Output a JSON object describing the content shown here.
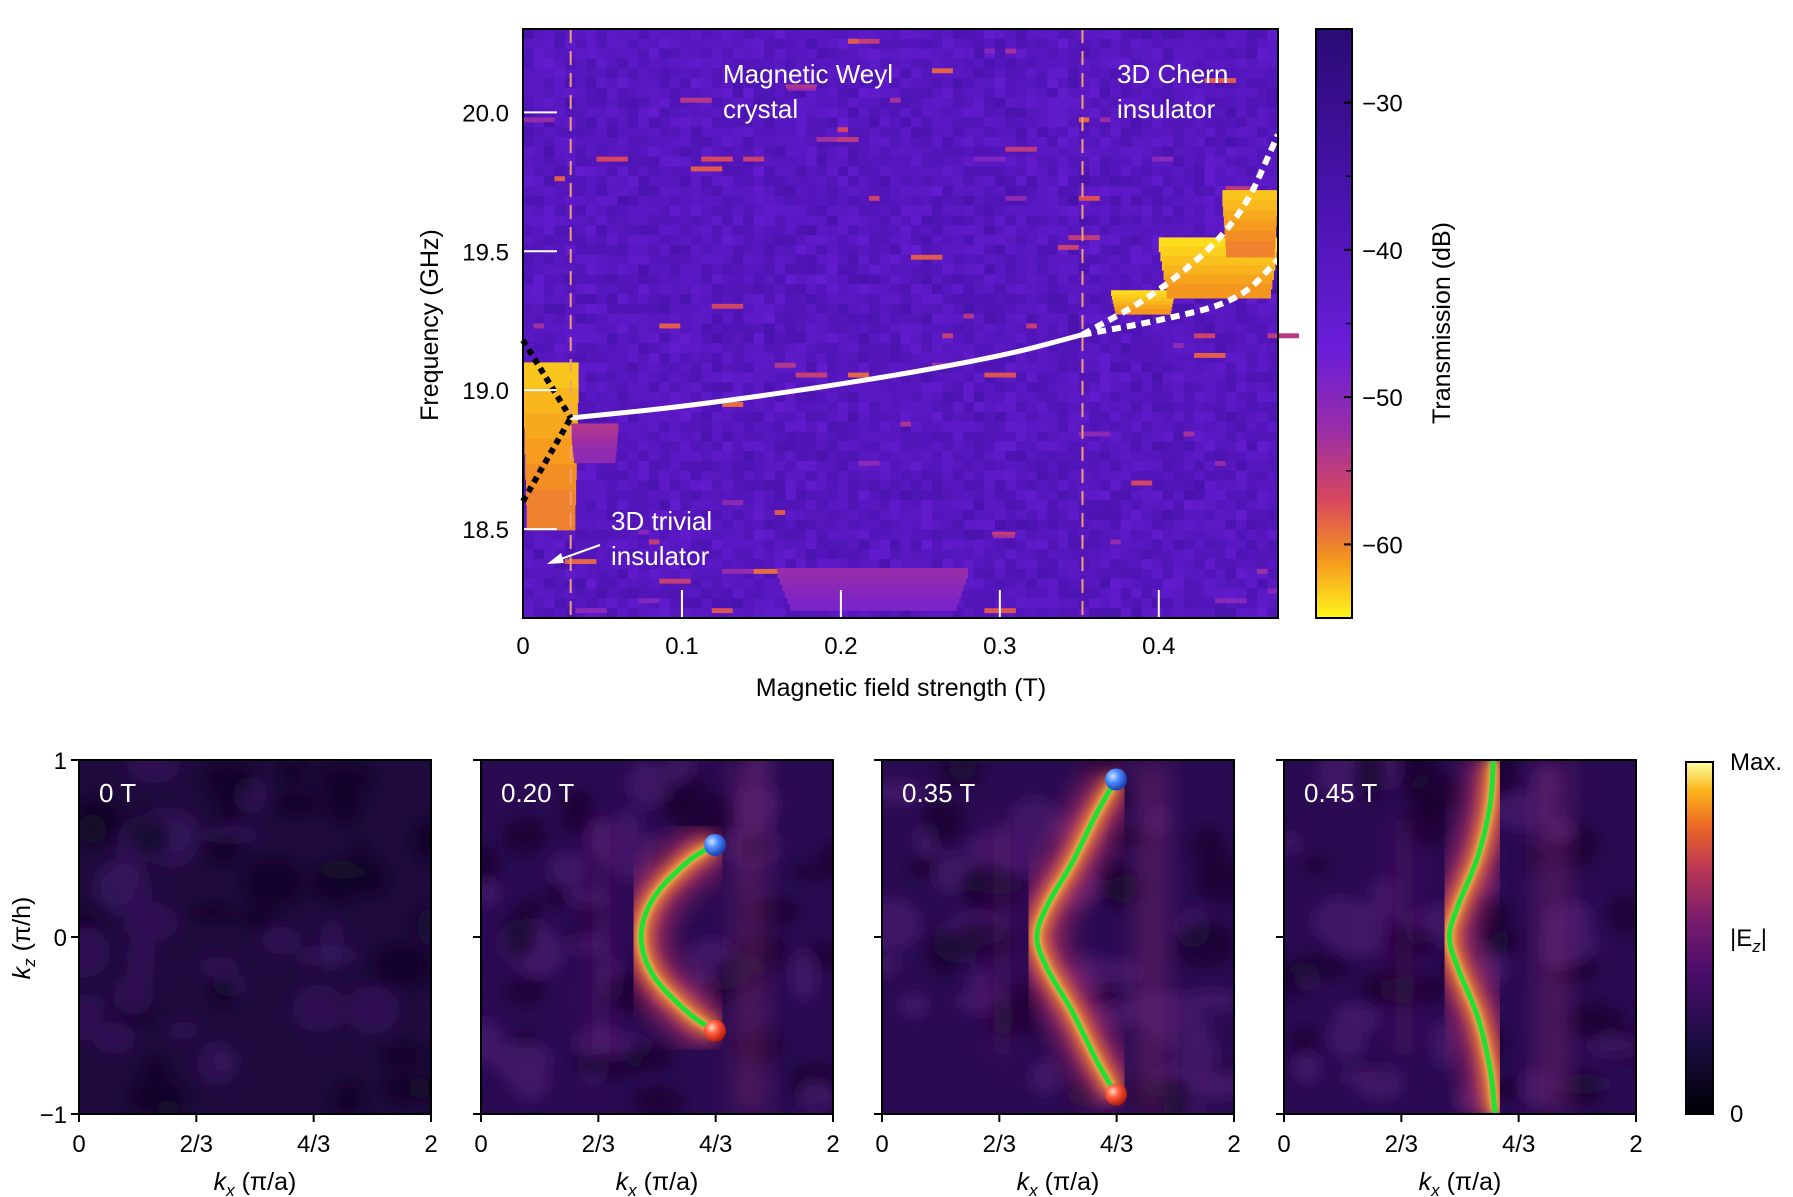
{
  "chart_data": [
    {
      "type": "heatmap",
      "xlabel": "Magnetic field strength (T)",
      "ylabel": "Frequency (GHz)",
      "xlim": [
        0,
        0.475
      ],
      "ylim": [
        18.18,
        20.3
      ],
      "xticks": [
        {
          "v": 0,
          "t": "0"
        },
        {
          "v": 0.1,
          "t": "0.1"
        },
        {
          "v": 0.2,
          "t": "0.2"
        },
        {
          "v": 0.3,
          "t": "0.3"
        },
        {
          "v": 0.4,
          "t": "0.4"
        }
      ],
      "yticks": [
        {
          "v": 18.5,
          "t": "18.5"
        },
        {
          "v": 19.0,
          "t": "19.0"
        },
        {
          "v": 19.5,
          "t": "19.5"
        },
        {
          "v": 20.0,
          "t": "20.0"
        }
      ],
      "phase_boundaries": [
        0.03,
        0.352
      ],
      "colorbar": {
        "label": "Transmission (dB)",
        "range": [
          -25,
          -65
        ],
        "ticks": [
          {
            "v": -30,
            "t": "−30"
          },
          {
            "v": -40,
            "t": "−40"
          },
          {
            "v": -50,
            "t": "−50"
          },
          {
            "v": -60,
            "t": "−60"
          }
        ]
      },
      "annotations": {
        "weyl": [
          "Magnetic Weyl",
          "crystal"
        ],
        "chern": [
          "3D Chern",
          "insulator"
        ],
        "trivial": [
          "3D trivial",
          "insulator"
        ]
      },
      "series": [
        {
          "style": "white-solid",
          "x": [
            0.03,
            0.1,
            0.2,
            0.3,
            0.352
          ],
          "y": [
            18.9,
            18.94,
            19.02,
            19.12,
            19.2
          ]
        },
        {
          "style": "black-dotted",
          "x": [
            0,
            0.03
          ],
          "y": [
            19.18,
            18.9
          ]
        },
        {
          "style": "black-dotted",
          "x": [
            0,
            0.03
          ],
          "y": [
            18.6,
            18.9
          ]
        },
        {
          "style": "white-dotted",
          "x": [
            0.352,
            0.4,
            0.45,
            0.475
          ],
          "y": [
            19.2,
            19.35,
            19.6,
            19.92
          ]
        },
        {
          "style": "white-dotted",
          "x": [
            0.352,
            0.4,
            0.45,
            0.475
          ],
          "y": [
            19.2,
            19.25,
            19.32,
            19.47
          ]
        }
      ],
      "hotspots": [
        {
          "x0": 0,
          "x1": 0.035,
          "y0": 18.55,
          "y1": 19.1,
          "v": -63
        },
        {
          "x0": 0.03,
          "x1": 0.06,
          "y0": 18.75,
          "y1": 18.88,
          "v": -54
        },
        {
          "x0": 0.37,
          "x1": 0.41,
          "y0": 19.28,
          "y1": 19.36,
          "v": -64
        },
        {
          "x0": 0.4,
          "x1": 0.475,
          "y0": 19.35,
          "y1": 19.55,
          "v": -64
        },
        {
          "x0": 0.44,
          "x1": 0.475,
          "y0": 19.5,
          "y1": 19.72,
          "v": -63
        },
        {
          "x0": 0.165,
          "x1": 0.185,
          "y0": 20.08,
          "y1": 20.1,
          "v": -55
        },
        {
          "x0": 0.16,
          "x1": 0.28,
          "y0": 18.22,
          "y1": 18.36,
          "v": -52
        },
        {
          "x0": 0.295,
          "x1": 0.31,
          "y0": 18.47,
          "y1": 18.49,
          "v": -56
        }
      ]
    },
    {
      "type": "heatmap",
      "label": "0 T",
      "xlabel": "kx (π/a)",
      "ylabel": "kz (π/h)",
      "xlim": [
        0,
        2
      ],
      "ylim": [
        -1,
        1
      ],
      "xticks": [
        {
          "v": 0,
          "t": "0"
        },
        {
          "v": 0.6667,
          "t": "2/3"
        },
        {
          "v": 1.3333,
          "t": "4/3"
        },
        {
          "v": 2,
          "t": "2"
        }
      ],
      "yticks": [
        {
          "v": -1,
          "t": "−1"
        },
        {
          "v": 0,
          "t": "0"
        },
        {
          "v": 1,
          "t": "1"
        }
      ],
      "arc": null
    },
    {
      "type": "heatmap",
      "label": "0.20 T",
      "xlabel": "kx (π/a)",
      "xlim": [
        0,
        2
      ],
      "ylim": [
        -1,
        1
      ],
      "xticks": [
        {
          "v": 0,
          "t": "0"
        },
        {
          "v": 0.6667,
          "t": "2/3"
        },
        {
          "v": 1.3333,
          "t": "4/3"
        },
        {
          "v": 2,
          "t": "2"
        }
      ],
      "arc": {
        "x": [
          1.33,
          1.18,
          0.98,
          0.91,
          0.98,
          1.18,
          1.33
        ],
        "y": [
          0.52,
          0.43,
          0.22,
          0,
          -0.22,
          -0.43,
          -0.53
        ]
      },
      "weyl_points": [
        {
          "x": 1.33,
          "y": 0.52,
          "color": "#3a7fff"
        },
        {
          "x": 1.33,
          "y": -0.53,
          "color": "#ff4e35"
        }
      ]
    },
    {
      "type": "heatmap",
      "label": "0.35 T",
      "xlabel": "kx (π/a)",
      "xlim": [
        0,
        2
      ],
      "ylim": [
        -1,
        1
      ],
      "xticks": [
        {
          "v": 0,
          "t": "0"
        },
        {
          "v": 0.6667,
          "t": "2/3"
        },
        {
          "v": 1.3333,
          "t": "4/3"
        },
        {
          "v": 2,
          "t": "2"
        }
      ],
      "arc": {
        "x": [
          1.33,
          1.22,
          1.08,
          0.94,
          0.88,
          0.94,
          1.08,
          1.22,
          1.33
        ],
        "y": [
          0.89,
          0.7,
          0.42,
          0.18,
          0,
          -0.18,
          -0.42,
          -0.7,
          -0.89
        ]
      },
      "weyl_points": [
        {
          "x": 1.33,
          "y": 0.89,
          "color": "#3a7fff"
        },
        {
          "x": 1.33,
          "y": -0.89,
          "color": "#ff4e35"
        }
      ]
    },
    {
      "type": "heatmap",
      "label": "0.45 T",
      "xlabel": "kx (π/a)",
      "xlim": [
        0,
        2
      ],
      "ylim": [
        -1,
        1
      ],
      "xticks": [
        {
          "v": 0,
          "t": "0"
        },
        {
          "v": 0.6667,
          "t": "2/3"
        },
        {
          "v": 1.3333,
          "t": "4/3"
        },
        {
          "v": 2,
          "t": "2"
        }
      ],
      "arc": {
        "x": [
          1.19,
          1.17,
          1.1,
          0.99,
          0.94,
          0.99,
          1.1,
          1.17,
          1.2
        ],
        "y": [
          1,
          0.74,
          0.45,
          0.18,
          0,
          -0.18,
          -0.45,
          -0.74,
          -1
        ]
      },
      "weyl_points": []
    }
  ],
  "field_colorbar": {
    "max_label": "Max.",
    "mid_label": "|E",
    "mid_sub": "z",
    "mid_close": "|",
    "min_label": "0"
  },
  "subplot_axis": {
    "kx_main": "k",
    "kx_sub": "x",
    "kx_unit": " (π/a)",
    "kz_main": "k",
    "kz_sub": "z",
    "kz_unit": " (π/h)"
  },
  "colors": {
    "inferno_low": "#000004",
    "inferno_high": "#fcffa4",
    "plasma_low": "#0d0887",
    "plasma_high": "#f0f921",
    "arc_green": "#22e032"
  }
}
